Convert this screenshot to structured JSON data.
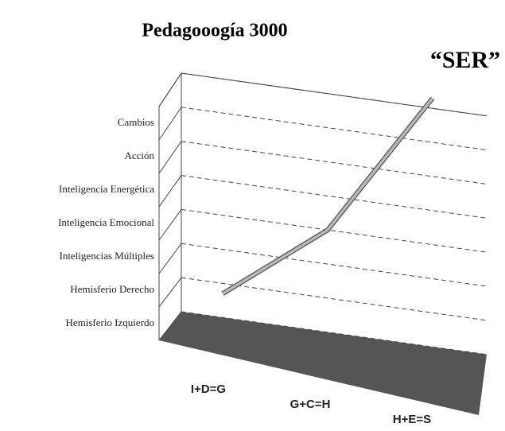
{
  "chart_data": {
    "type": "line",
    "title": "Pedagooogía 3000",
    "annotation": "“SER”",
    "categories": [
      "I+D=G",
      "G+C=H",
      "H+E=S"
    ],
    "series": [
      {
        "color": "#b8b8b8",
        "values": [
          0.7,
          3.0,
          7.3
        ]
      }
    ],
    "ylim": [
      0,
      7
    ],
    "yticks": [
      {
        "value": 0.5,
        "label": "Hemisferio Izquierdo"
      },
      {
        "value": 1.5,
        "label": "Hemisferio Derecho"
      },
      {
        "value": 2.5,
        "label": "Inteligencias Múltiples"
      },
      {
        "value": 3.5,
        "label": "Inteligencia Emocional"
      },
      {
        "value": 4.5,
        "label": "Inteligencia Energética"
      },
      {
        "value": 5.5,
        "label": "Acción"
      },
      {
        "value": 6.5,
        "label": "Cambios"
      }
    ],
    "grid": true,
    "floor_color": "#555555"
  }
}
